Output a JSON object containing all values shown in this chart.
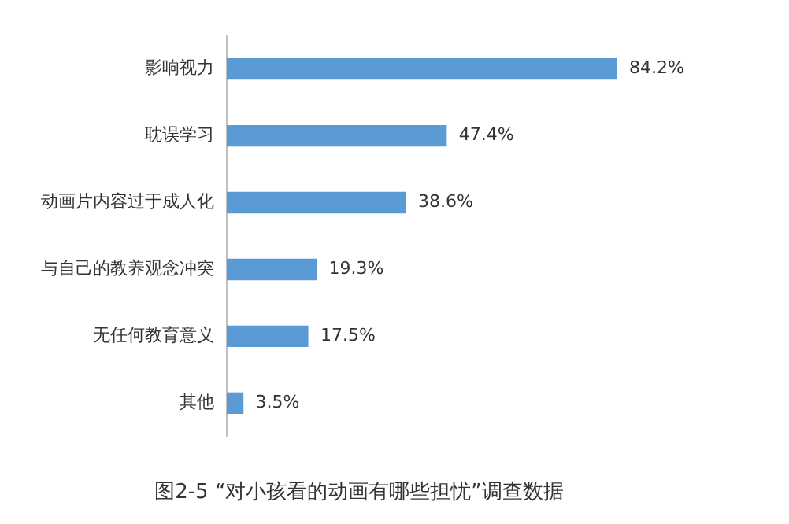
{
  "chart_data": {
    "type": "bar",
    "orientation": "horizontal",
    "title": "图2-5 “对小孩看的动画有哪些担忧”调查数据",
    "categories": [
      "影响视力",
      "耽误学习",
      "动画片内容过于成人化",
      "与自己的教养观念冲突",
      "无任何教育意义",
      "其他"
    ],
    "values": [
      84.2,
      47.4,
      38.6,
      19.3,
      17.5,
      3.5
    ],
    "value_labels": [
      "84.2%",
      "47.4%",
      "38.6%",
      "19.3%",
      "17.5%",
      "3.5%"
    ],
    "color": "#5b9bd5",
    "legend": false
  }
}
